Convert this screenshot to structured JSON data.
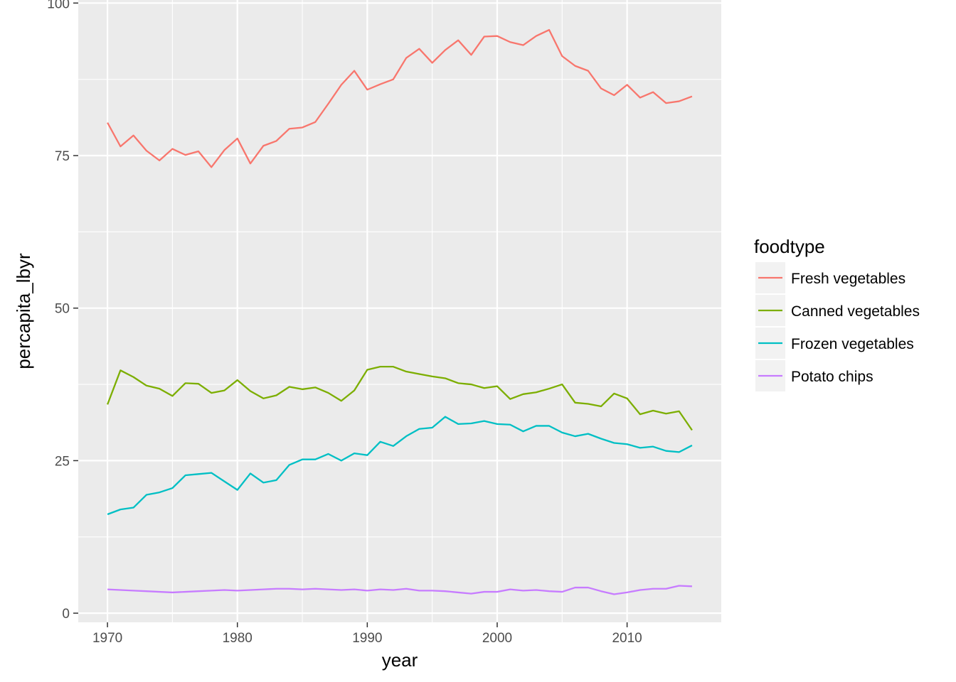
{
  "chart_data": {
    "type": "line",
    "xlabel": "year",
    "ylabel": "percapita_lbyr",
    "xlim": [
      1967.75,
      2017.25
    ],
    "ylim": [
      -1.5,
      100.5
    ],
    "x_ticks": [
      1970,
      1980,
      1990,
      2000,
      2010
    ],
    "y_ticks": [
      0,
      25,
      50,
      75,
      100
    ],
    "grid": true,
    "panel_background": "#EBEBEB",
    "legend": {
      "title": "foodtype",
      "position": "right"
    },
    "x": [
      1970,
      1971,
      1972,
      1973,
      1974,
      1975,
      1976,
      1977,
      1978,
      1979,
      1980,
      1981,
      1982,
      1983,
      1984,
      1985,
      1986,
      1987,
      1988,
      1989,
      1990,
      1991,
      1992,
      1993,
      1994,
      1995,
      1996,
      1997,
      1998,
      1999,
      2000,
      2001,
      2002,
      2003,
      2004,
      2005,
      2006,
      2007,
      2008,
      2009,
      2010,
      2011,
      2012,
      2013,
      2014,
      2015
    ],
    "series": [
      {
        "name": "Fresh vegetables",
        "color": "#F8766D",
        "values": [
          80.4,
          76.5,
          78.3,
          75.8,
          74.2,
          76.1,
          75.1,
          75.7,
          73.1,
          75.9,
          77.8,
          73.7,
          76.6,
          77.4,
          79.4,
          79.6,
          80.5,
          83.5,
          86.6,
          88.9,
          85.8,
          86.7,
          87.5,
          91.0,
          92.5,
          90.2,
          92.3,
          93.9,
          91.5,
          94.5,
          94.6,
          93.6,
          93.1,
          94.6,
          95.6,
          91.3,
          89.7,
          88.9,
          86.0,
          84.9,
          86.6,
          84.5,
          85.4,
          83.6,
          83.9,
          84.7
        ]
      },
      {
        "name": "Canned vegetables",
        "color": "#7CAE00",
        "values": [
          34.2,
          39.8,
          38.7,
          37.3,
          36.8,
          35.6,
          37.7,
          37.6,
          36.1,
          36.5,
          38.2,
          36.4,
          35.2,
          35.7,
          37.1,
          36.7,
          37.0,
          36.1,
          34.8,
          36.5,
          39.9,
          40.4,
          40.4,
          39.6,
          39.2,
          38.8,
          38.5,
          37.7,
          37.5,
          36.9,
          37.2,
          35.1,
          35.9,
          36.2,
          36.8,
          37.5,
          34.5,
          34.3,
          33.9,
          36.0,
          35.2,
          32.6,
          33.2,
          32.7,
          33.1,
          30.0
        ]
      },
      {
        "name": "Frozen vegetables",
        "color": "#00BFC4",
        "values": [
          16.2,
          17.0,
          17.3,
          19.4,
          19.8,
          20.5,
          22.6,
          22.8,
          23.0,
          21.6,
          20.2,
          22.9,
          21.4,
          21.8,
          24.3,
          25.2,
          25.2,
          26.1,
          25.0,
          26.2,
          25.9,
          28.1,
          27.4,
          29.0,
          30.2,
          30.4,
          32.2,
          31.0,
          31.1,
          31.5,
          31.0,
          30.9,
          29.8,
          30.7,
          30.7,
          29.6,
          29.0,
          29.4,
          28.6,
          27.9,
          27.7,
          27.1,
          27.3,
          26.6,
          26.4,
          27.5
        ]
      },
      {
        "name": "Potato chips",
        "color": "#C77CFF",
        "values": [
          3.9,
          3.8,
          3.7,
          3.6,
          3.5,
          3.4,
          3.5,
          3.6,
          3.7,
          3.8,
          3.7,
          3.8,
          3.9,
          4.0,
          4.0,
          3.9,
          4.0,
          3.9,
          3.8,
          3.9,
          3.7,
          3.9,
          3.8,
          4.0,
          3.7,
          3.7,
          3.6,
          3.4,
          3.2,
          3.5,
          3.5,
          3.9,
          3.7,
          3.8,
          3.6,
          3.5,
          4.2,
          4.2,
          3.6,
          3.1,
          3.4,
          3.8,
          4.0,
          4.0,
          4.5,
          4.4
        ]
      }
    ]
  }
}
